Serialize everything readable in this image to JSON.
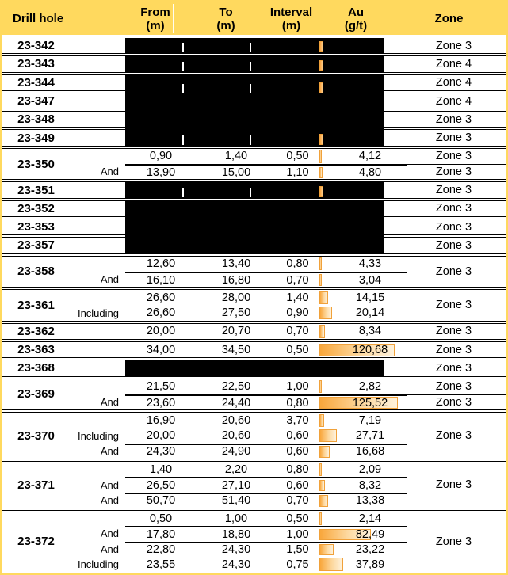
{
  "header": {
    "drill_hole": "Drill hole",
    "from": "From",
    "to": "To",
    "interval": "Interval",
    "au": "Au",
    "unit_m": "(m)",
    "unit_gt": "(g/t)",
    "zone": "Zone"
  },
  "colors": {
    "header_yellow": "#FFD95E",
    "bar_orange": "#F9A73C",
    "bar_border": "#F0A13A",
    "redaction_black": "#000000"
  },
  "groups": [
    {
      "id": "23-342",
      "zone": "Zone 3",
      "redacted": true,
      "marks": true
    },
    {
      "id": "23-343",
      "zone": "Zone 4",
      "redacted": true,
      "marks": true
    },
    {
      "id": "23-344",
      "zone": "Zone 4",
      "redacted": true,
      "marks": true,
      "extend": true
    },
    {
      "id": "23-347",
      "zone": "Zone 4",
      "redacted": true,
      "marks": false,
      "extend": true
    },
    {
      "id": "23-348",
      "zone": "Zone 3",
      "redacted": true,
      "marks": false,
      "extend": true
    },
    {
      "id": "23-349",
      "zone": "Zone 3",
      "redacted": true,
      "marks": true
    },
    {
      "id": "23-350",
      "zone_per_row": true,
      "rows": [
        {
          "qualifier": "",
          "from": "0,90",
          "to": "1,40",
          "interval": "0,50",
          "au": "4,12",
          "zone": "Zone 3"
        },
        {
          "qualifier": "And",
          "from": "13,90",
          "to": "15,00",
          "interval": "1,10",
          "au": "4,80",
          "zone": "Zone 3"
        }
      ]
    },
    {
      "id": "23-351",
      "zone": "Zone 3",
      "redacted": true,
      "marks": true
    },
    {
      "id": "23-352",
      "zone": "Zone 3",
      "redacted": true,
      "marks": false,
      "extend": true
    },
    {
      "id": "23-353",
      "zone": "Zone 3",
      "redacted": true,
      "marks": false,
      "extend": true
    },
    {
      "id": "23-357",
      "zone": "Zone 3",
      "redacted": true,
      "marks": false
    },
    {
      "id": "23-358",
      "zone": "Zone 3",
      "rows": [
        {
          "qualifier": "",
          "from": "12,60",
          "to": "13,40",
          "interval": "0,80",
          "au": "4,33"
        },
        {
          "qualifier": "And",
          "from": "16,10",
          "to": "16,80",
          "interval": "0,70",
          "au": "3,04"
        }
      ]
    },
    {
      "id": "23-361",
      "zone": "Zone 3",
      "rows": [
        {
          "qualifier": "",
          "from": "26,60",
          "to": "28,00",
          "interval": "1,40",
          "au": "14,15"
        },
        {
          "qualifier": "Including",
          "from": "26,60",
          "to": "27,50",
          "interval": "0,90",
          "au": "20,14"
        }
      ]
    },
    {
      "id": "23-362",
      "zone": "Zone 3",
      "rows": [
        {
          "qualifier": "",
          "from": "20,00",
          "to": "20,70",
          "interval": "0,70",
          "au": "8,34"
        }
      ]
    },
    {
      "id": "23-363",
      "zone": "Zone 3",
      "rows": [
        {
          "qualifier": "",
          "from": "34,00",
          "to": "34,50",
          "interval": "0,50",
          "au": "120,68"
        }
      ]
    },
    {
      "id": "23-368",
      "zone": "Zone 3",
      "redacted": true,
      "marks": false
    },
    {
      "id": "23-369",
      "zone_per_row": true,
      "rows": [
        {
          "qualifier": "",
          "from": "21,50",
          "to": "22,50",
          "interval": "1,00",
          "au": "2,82",
          "zone": "Zone 3"
        },
        {
          "qualifier": "And",
          "from": "23,60",
          "to": "24,40",
          "interval": "0,80",
          "au": "125,52",
          "zone": "Zone 3"
        }
      ]
    },
    {
      "id": "23-370",
      "zone": "Zone 3",
      "rows": [
        {
          "qualifier": "",
          "from": "16,90",
          "to": "20,60",
          "interval": "3,70",
          "au": "7,19"
        },
        {
          "qualifier": "Including",
          "from": "20,00",
          "to": "20,60",
          "interval": "0,60",
          "au": "27,71"
        },
        {
          "qualifier": "And",
          "from": "24,30",
          "to": "24,90",
          "interval": "0,60",
          "au": "16,68"
        }
      ]
    },
    {
      "id": "23-371",
      "zone": "Zone 3",
      "rows": [
        {
          "qualifier": "",
          "from": "1,40",
          "to": "2,20",
          "interval": "0,80",
          "au": "2,09"
        },
        {
          "qualifier": "And",
          "from": "26,50",
          "to": "27,10",
          "interval": "0,60",
          "au": "8,32"
        },
        {
          "qualifier": "And",
          "from": "50,70",
          "to": "51,40",
          "interval": "0,70",
          "au": "13,38"
        }
      ]
    },
    {
      "id": "23-372",
      "zone": "Zone 3",
      "rows": [
        {
          "qualifier": "",
          "from": "0,50",
          "to": "1,00",
          "interval": "0,50",
          "au": "2,14"
        },
        {
          "qualifier": "And",
          "from": "17,80",
          "to": "18,80",
          "interval": "1,00",
          "au": "82,49"
        },
        {
          "qualifier": "And",
          "from": "22,80",
          "to": "24,30",
          "interval": "1,50",
          "au": "23,22"
        },
        {
          "qualifier": "Including",
          "from": "23,55",
          "to": "24,30",
          "interval": "0,75",
          "au": "37,89"
        }
      ]
    }
  ]
}
